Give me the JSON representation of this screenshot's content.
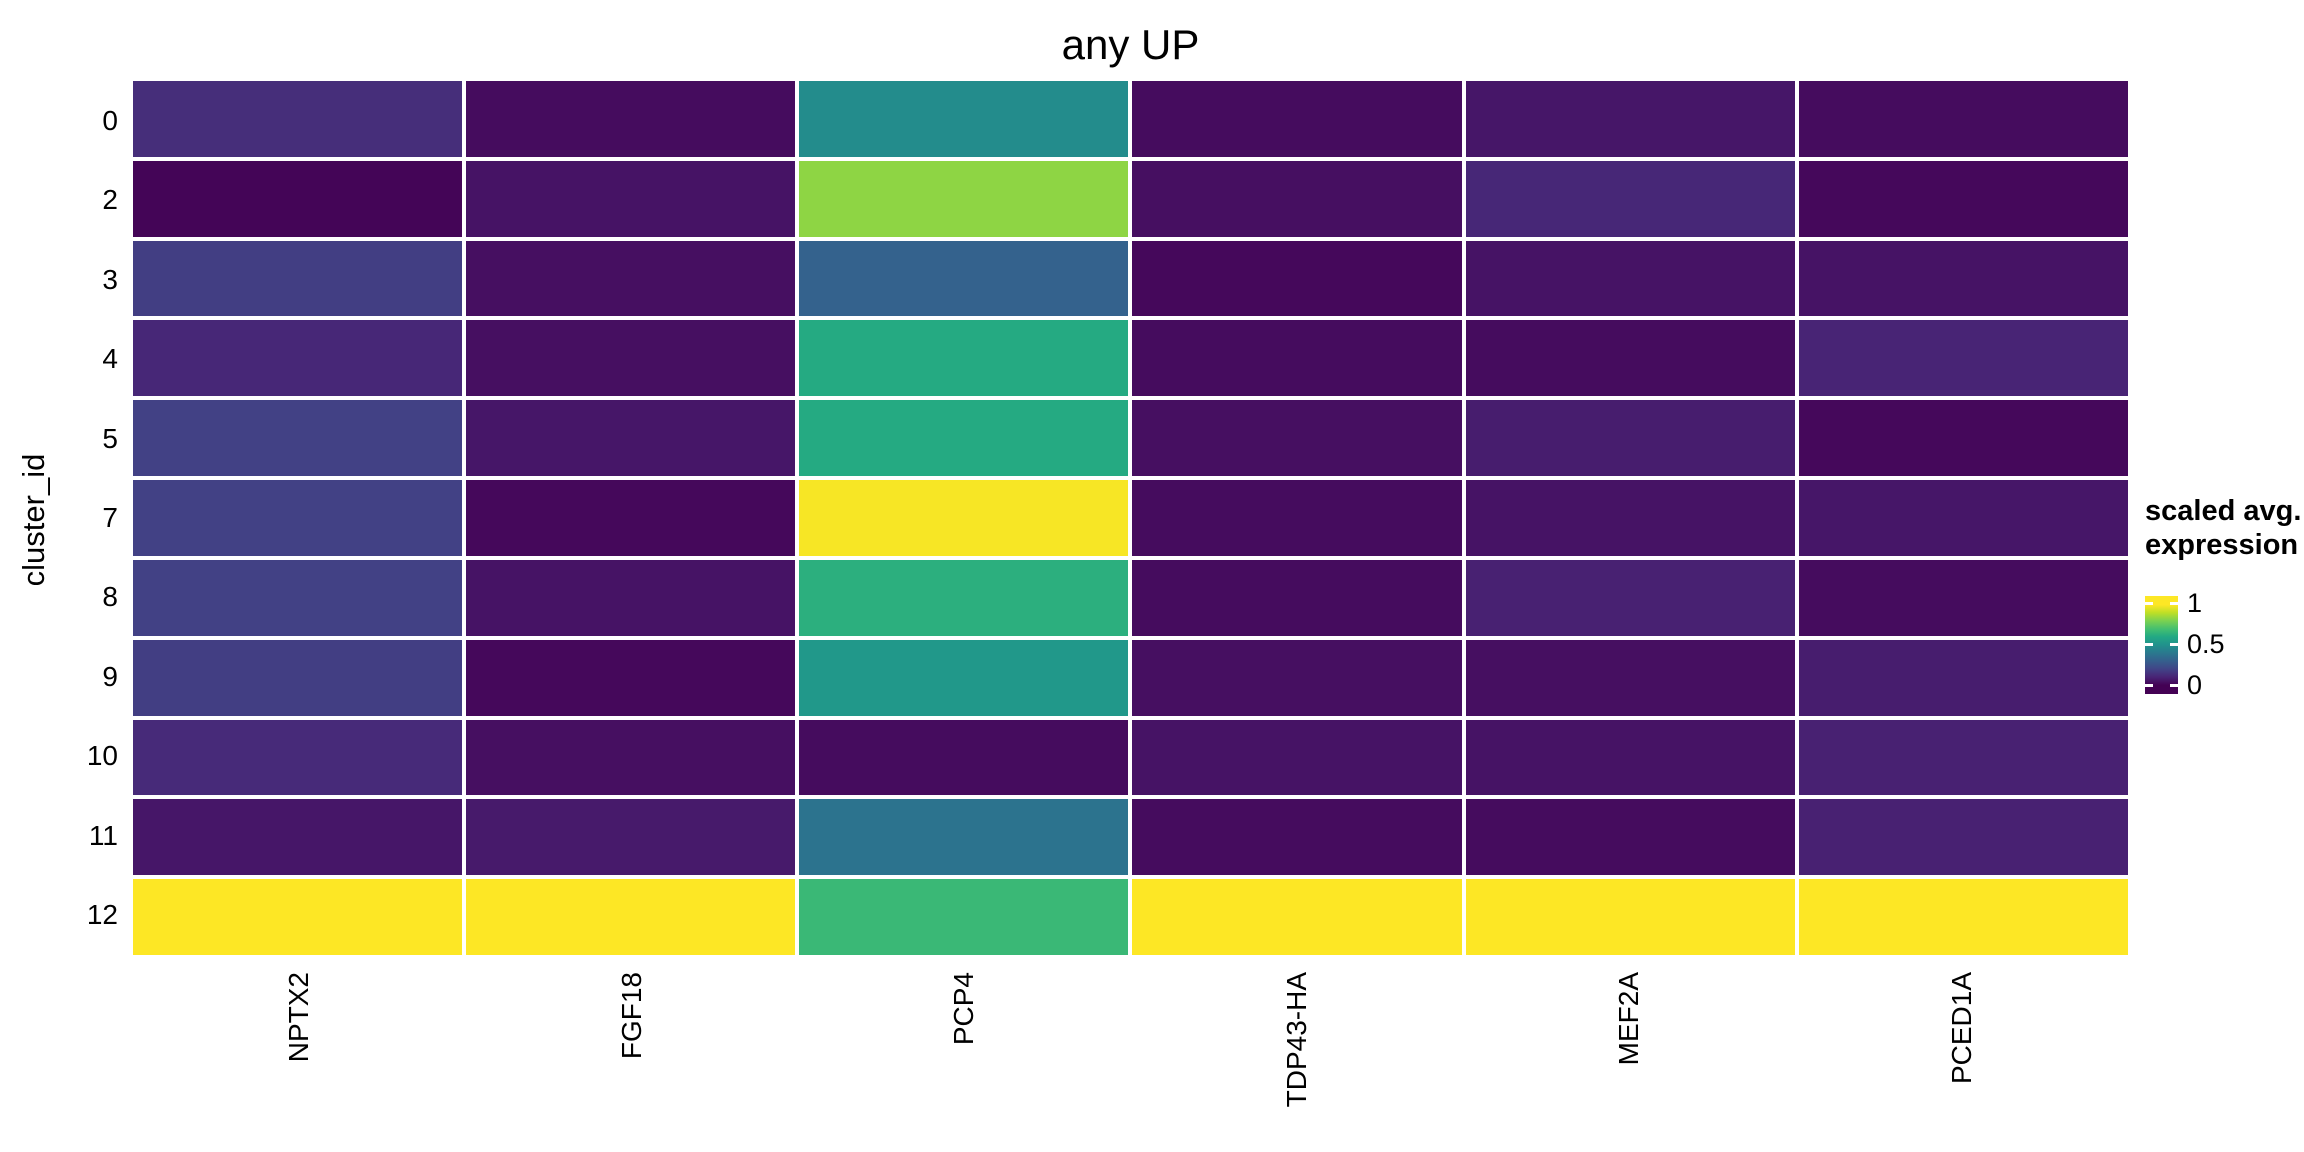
{
  "title": "any UP",
  "y_axis_title": "cluster_id",
  "legend": {
    "title_lines": [
      "scaled avg.",
      "expression"
    ],
    "ticks": [
      "1",
      "0.5",
      "0"
    ]
  },
  "chart_data": {
    "type": "heatmap",
    "title": "any UP",
    "xlabel": "",
    "ylabel": "cluster_id",
    "rows": [
      "0",
      "2",
      "3",
      "4",
      "5",
      "7",
      "8",
      "9",
      "10",
      "11",
      "12"
    ],
    "columns": [
      "NPTX2",
      "FGF18",
      "PCP4",
      "TDP43-HA",
      "MEF2A",
      "PCED1A"
    ],
    "values": [
      [
        0.13,
        0.03,
        0.48,
        0.03,
        0.06,
        0.03
      ],
      [
        0.01,
        0.05,
        0.83,
        0.04,
        0.11,
        0.02
      ],
      [
        0.18,
        0.04,
        0.31,
        0.02,
        0.05,
        0.05
      ],
      [
        0.11,
        0.04,
        0.61,
        0.03,
        0.03,
        0.1
      ],
      [
        0.19,
        0.06,
        0.61,
        0.04,
        0.08,
        0.02
      ],
      [
        0.19,
        0.02,
        0.99,
        0.03,
        0.05,
        0.06
      ],
      [
        0.19,
        0.05,
        0.63,
        0.03,
        0.09,
        0.03
      ],
      [
        0.18,
        0.02,
        0.53,
        0.04,
        0.04,
        0.08
      ],
      [
        0.12,
        0.04,
        0.03,
        0.05,
        0.05,
        0.09
      ],
      [
        0.06,
        0.07,
        0.38,
        0.03,
        0.03,
        0.09
      ],
      [
        1.0,
        1.0,
        0.67,
        1.0,
        1.0,
        1.0
      ]
    ],
    "value_range": [
      0,
      1
    ],
    "colormap": "viridis",
    "legend_title": "scaled avg. expression",
    "legend_ticks": [
      1,
      0.5,
      0
    ],
    "legend_position": "right",
    "grid": false
  },
  "colors": {
    "viridis_stops": [
      "#440154",
      "#482475",
      "#414487",
      "#355f8d",
      "#2a788e",
      "#21918c",
      "#22a884",
      "#44bf70",
      "#7ad151",
      "#bddf26",
      "#fde725"
    ],
    "background": "#ffffff",
    "cell_gap": "#ffffff",
    "text": "#000000"
  }
}
